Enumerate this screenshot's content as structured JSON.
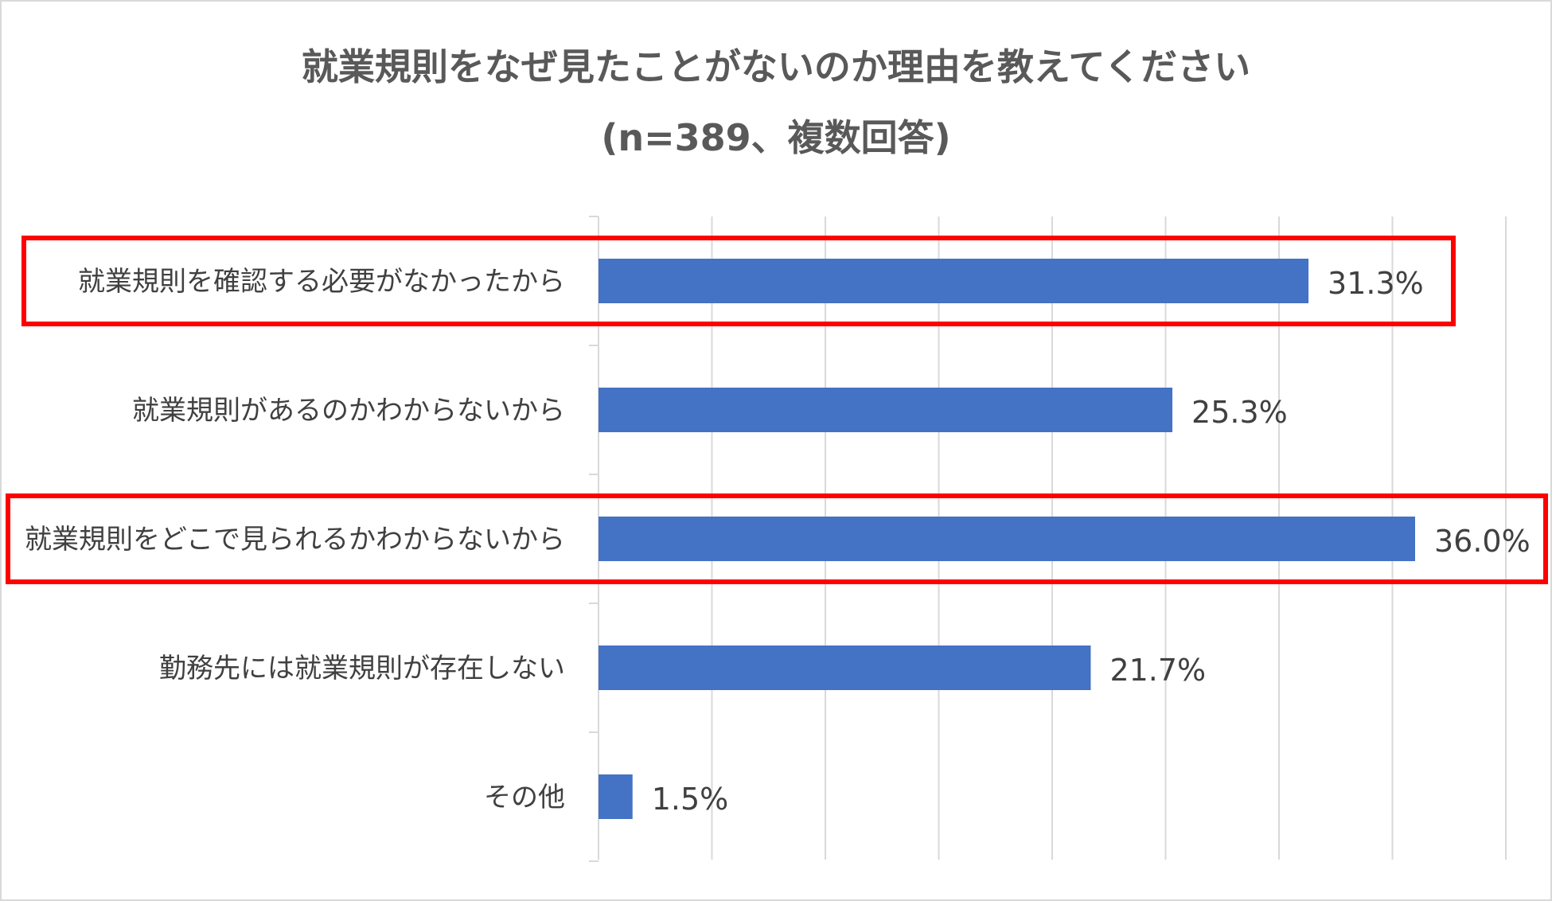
{
  "chart_data": {
    "type": "bar",
    "orientation": "horizontal",
    "title": "就業規則をなぜ見たことがないのか理由を教えてください",
    "subtitle": "(n=389、複数回答)",
    "xlabel": "",
    "ylabel": "",
    "xlim": [
      0,
      40
    ],
    "grid": true,
    "categories": [
      "就業規則を確認する必要がなかったから",
      "就業規則があるのかわからないから",
      "就業規則をどこで見られるかわからないから",
      "勤務先には就業規則が存在しない",
      "その他"
    ],
    "values": [
      31.3,
      25.3,
      36.0,
      21.7,
      1.5
    ],
    "value_labels": [
      "31.3%",
      "25.3%",
      "36.0%",
      "21.7%",
      "1.5%"
    ],
    "highlighted": [
      true,
      false,
      true,
      false,
      false
    ],
    "bar_color": "#4472c4",
    "highlight_color": "#ff0000",
    "grid_color": "#d9d9d9"
  }
}
